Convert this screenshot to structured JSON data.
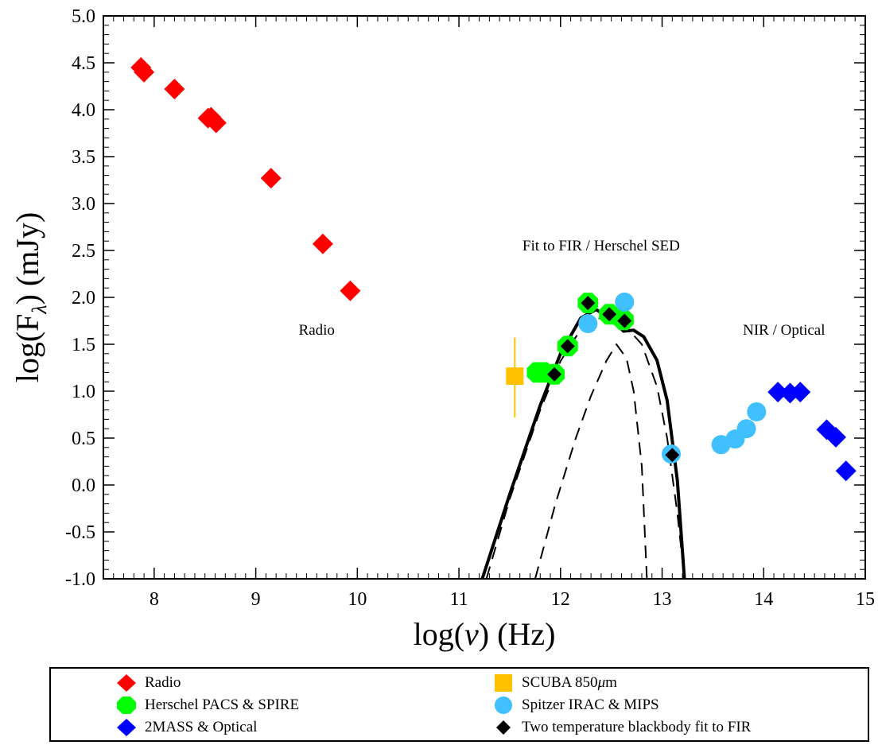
{
  "chart_data": {
    "type": "scatter",
    "xlabel_main": "log(",
    "xlabel_var": "ν",
    "xlabel_rest": ") (Hz)",
    "ylabel_main": "log(F",
    "ylabel_sub": "λ",
    "ylabel_rest": ") (mJy)",
    "xlim": [
      7.5,
      15
    ],
    "ylim": [
      -1.0,
      5.0
    ],
    "x_ticks": [
      8,
      9,
      10,
      11,
      12,
      13,
      14,
      15
    ],
    "y_ticks": [
      -1.0,
      -0.5,
      0.0,
      0.5,
      1.0,
      1.5,
      2.0,
      2.5,
      3.0,
      3.5,
      4.0,
      4.5,
      5.0
    ],
    "x_tick_labels": [
      "8",
      "9",
      "10",
      "11",
      "12",
      "13",
      "14",
      "15"
    ],
    "y_tick_labels": [
      "-1.0",
      "-0.5",
      "0.0",
      "0.5",
      "1.0",
      "1.5",
      "2.0",
      "2.5",
      "3.0",
      "3.5",
      "4.0",
      "4.5",
      "5.0"
    ],
    "annotations": [
      {
        "text": "Radio",
        "x": 9.6,
        "y": 1.6
      },
      {
        "text": "Fit to FIR / Herschel SED",
        "x": 12.4,
        "y": 2.5
      },
      {
        "text": "NIR / Optical",
        "x": 14.2,
        "y": 1.6
      }
    ],
    "series": [
      {
        "name": "Radio",
        "marker": "diamond",
        "color": "#ff0000",
        "points": [
          [
            7.87,
            4.45
          ],
          [
            7.9,
            4.4
          ],
          [
            8.2,
            4.22
          ],
          [
            8.53,
            3.91
          ],
          [
            8.56,
            3.92
          ],
          [
            8.61,
            3.86
          ],
          [
            9.15,
            3.27
          ],
          [
            9.66,
            2.57
          ],
          [
            9.93,
            2.07
          ]
        ]
      },
      {
        "name": "SCUBA 850μm",
        "marker": "square",
        "color": "#ffc000",
        "points": [
          [
            11.55,
            1.16
          ]
        ],
        "yerr": [
          [
            0.72,
            1.57
          ]
        ]
      },
      {
        "name": "Herschel PACS & SPIRE",
        "marker": "octagon",
        "color": "#00ff00",
        "points": [
          [
            11.77,
            1.2
          ],
          [
            11.83,
            1.2
          ],
          [
            11.94,
            1.18
          ],
          [
            12.07,
            1.48
          ],
          [
            12.27,
            1.94
          ],
          [
            12.48,
            1.82
          ],
          [
            12.62,
            1.76
          ]
        ]
      },
      {
        "name": "Spitzer IRAC & MIPS",
        "marker": "circle",
        "color": "#40c0ff",
        "points": [
          [
            12.27,
            1.72
          ],
          [
            12.63,
            1.95
          ],
          [
            13.09,
            0.33
          ],
          [
            13.58,
            0.43
          ],
          [
            13.72,
            0.49
          ],
          [
            13.83,
            0.6
          ],
          [
            13.93,
            0.78
          ]
        ]
      },
      {
        "name": "2MASS & Optical",
        "marker": "diamond",
        "color": "#0000ff",
        "points": [
          [
            14.14,
            0.99
          ],
          [
            14.26,
            0.98
          ],
          [
            14.36,
            0.99
          ],
          [
            14.62,
            0.59
          ],
          [
            14.71,
            0.51
          ],
          [
            14.81,
            0.15
          ]
        ]
      },
      {
        "name": "Two temperature blackbody fit to FIR",
        "marker": "diamond",
        "color": "#000000",
        "points": [
          [
            11.94,
            1.18
          ],
          [
            12.07,
            1.48
          ],
          [
            12.27,
            1.94
          ],
          [
            12.48,
            1.82
          ],
          [
            12.63,
            1.75
          ],
          [
            13.1,
            0.32
          ]
        ]
      }
    ],
    "curves": [
      {
        "style": "solid",
        "width": 4,
        "points": [
          [
            11.23,
            -1.0
          ],
          [
            11.5,
            -0.1
          ],
          [
            11.8,
            0.85
          ],
          [
            12.0,
            1.4
          ],
          [
            12.2,
            1.78
          ],
          [
            12.35,
            1.87
          ],
          [
            12.5,
            1.77
          ],
          [
            12.62,
            1.64
          ],
          [
            12.72,
            1.65
          ],
          [
            12.82,
            1.58
          ],
          [
            12.95,
            1.33
          ],
          [
            13.05,
            0.9
          ],
          [
            13.15,
            0.05
          ],
          [
            13.22,
            -1.0
          ]
        ]
      },
      {
        "style": "dashed",
        "width": 2,
        "points": [
          [
            11.27,
            -1.0
          ],
          [
            11.5,
            -0.15
          ],
          [
            11.8,
            0.8
          ],
          [
            12.0,
            1.32
          ],
          [
            12.2,
            1.66
          ],
          [
            12.35,
            1.78
          ],
          [
            12.5,
            1.76
          ],
          [
            12.65,
            1.68
          ],
          [
            12.8,
            1.5
          ],
          [
            12.95,
            1.05
          ],
          [
            13.05,
            0.5
          ],
          [
            13.15,
            -0.3
          ],
          [
            13.22,
            -1.0
          ]
        ]
      },
      {
        "style": "dashed",
        "width": 2,
        "points": [
          [
            11.75,
            -1.0
          ],
          [
            11.95,
            -0.2
          ],
          [
            12.15,
            0.5
          ],
          [
            12.3,
            0.95
          ],
          [
            12.45,
            1.32
          ],
          [
            12.55,
            1.5
          ],
          [
            12.65,
            1.35
          ],
          [
            12.72,
            1.0
          ],
          [
            12.8,
            0.2
          ],
          [
            12.85,
            -1.0
          ]
        ]
      }
    ]
  },
  "legend": {
    "items": [
      {
        "label": "Radio",
        "marker": "diamond",
        "color": "#ff0000"
      },
      {
        "label": "SCUBA 850",
        "label_unit": "m",
        "label_mu": "μ",
        "marker": "square",
        "color": "#ffc000"
      },
      {
        "label": "Herschel PACS & SPIRE",
        "marker": "octagon",
        "color": "#00ff00"
      },
      {
        "label": "Spitzer IRAC & MIPS",
        "marker": "circle",
        "color": "#40c0ff"
      },
      {
        "label": "2MASS & Optical",
        "marker": "diamond",
        "color": "#0000ff"
      },
      {
        "label": "Two temperature blackbody fit to FIR",
        "marker": "diamond",
        "color": "#000000"
      }
    ]
  }
}
